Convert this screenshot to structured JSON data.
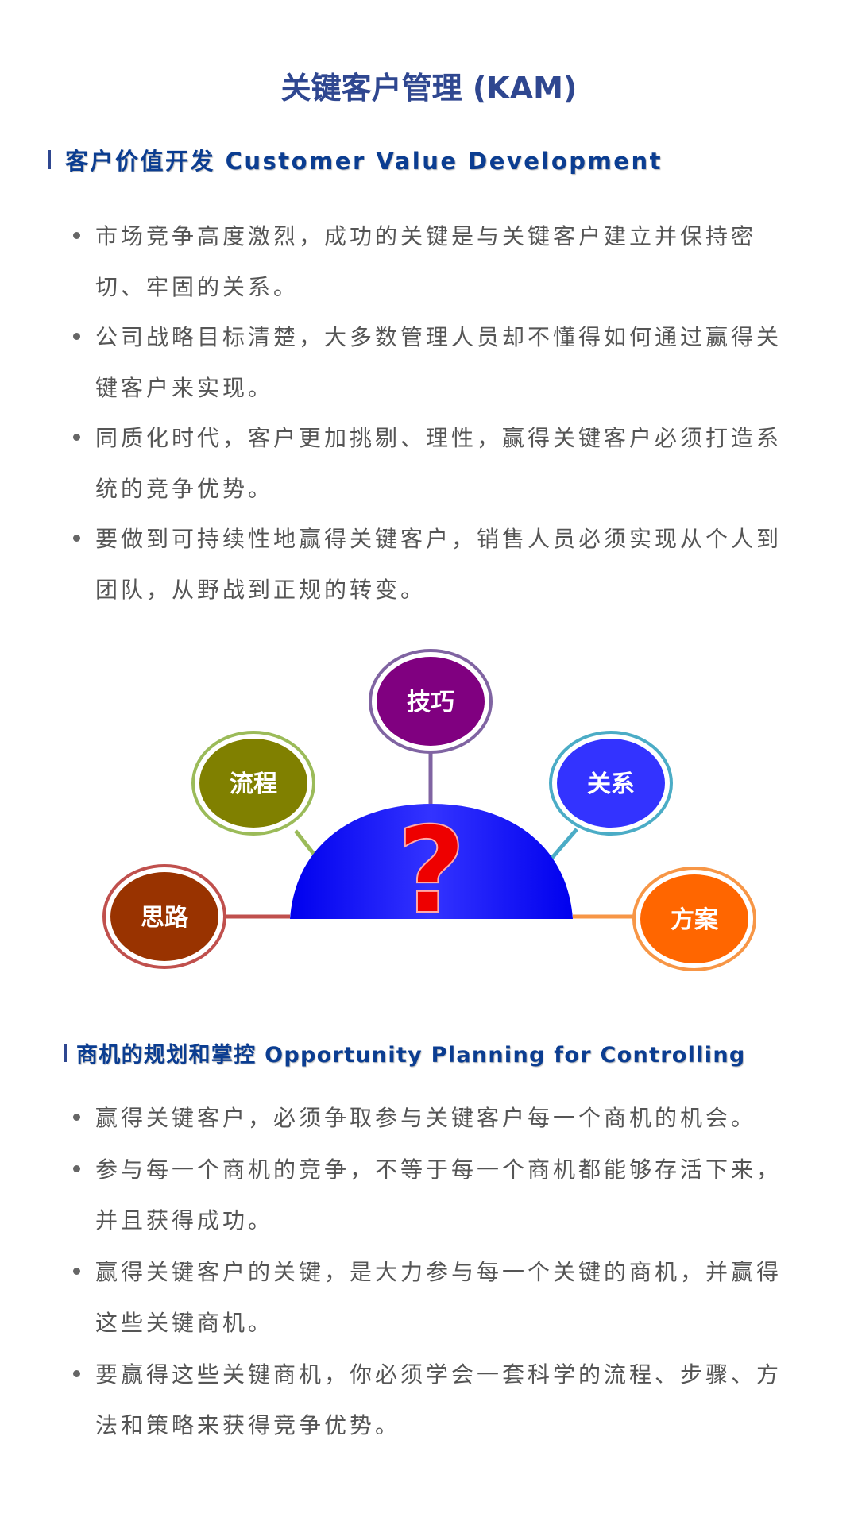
{
  "title": "关键客户管理 (KAM)",
  "section1": {
    "heading": "客户价值开发 Customer Value Development",
    "bullets": [
      {
        "lines": [
          "市场竞争高度激烈，成功的关键是与关键客户建立并保持密",
          "切、牢固的关系。"
        ]
      },
      {
        "lines": [
          "公司战略目标清楚，大多数管理人员却不懂得如何通过赢得关",
          "键客户来实现。"
        ]
      },
      {
        "lines": [
          "同质化时代，客户更加挑剔、理性，赢得关键客户必须打造系",
          "统的竞争优势。"
        ]
      },
      {
        "lines": [
          "要做到可持续性地赢得关键客户，销售人员必须实现从个人到",
          "团队，从野战到正规的转变。"
        ]
      }
    ]
  },
  "diagram": {
    "center_symbol": "?",
    "center_color": "#1a1aff",
    "nodes": [
      {
        "label": "思路",
        "color": "#993300",
        "ring": "#c0504d"
      },
      {
        "label": "流程",
        "color": "#808000",
        "ring": "#9bbb59"
      },
      {
        "label": "技巧",
        "color": "#800080",
        "ring": "#8064a2"
      },
      {
        "label": "关系",
        "color": "#3333ff",
        "ring": "#4bacc6"
      },
      {
        "label": "方案",
        "color": "#ff6600",
        "ring": "#f79646"
      }
    ]
  },
  "section2": {
    "heading": "商机的规划和掌控 Opportunity Planning for Controlling",
    "bullets": [
      {
        "lines": [
          "赢得关键客户，必须争取参与关键客户每一个商机的机会。"
        ]
      },
      {
        "lines": [
          "参与每一个商机的竞争，不等于每一个商机都能够存活下来，",
          "并且获得成功。"
        ]
      },
      {
        "lines": [
          "赢得关键客户的关键，是大力参与每一个关键的商机，并赢得",
          "这些关键商机。"
        ]
      },
      {
        "lines": [
          "要赢得这些关键商机，你必须学会一套科学的流程、步骤、方",
          "法和策略来获得竞争优势。"
        ]
      }
    ]
  },
  "colors": {
    "title": "#2f4790",
    "heading": "#0b3d91",
    "body_text": "#555555"
  }
}
